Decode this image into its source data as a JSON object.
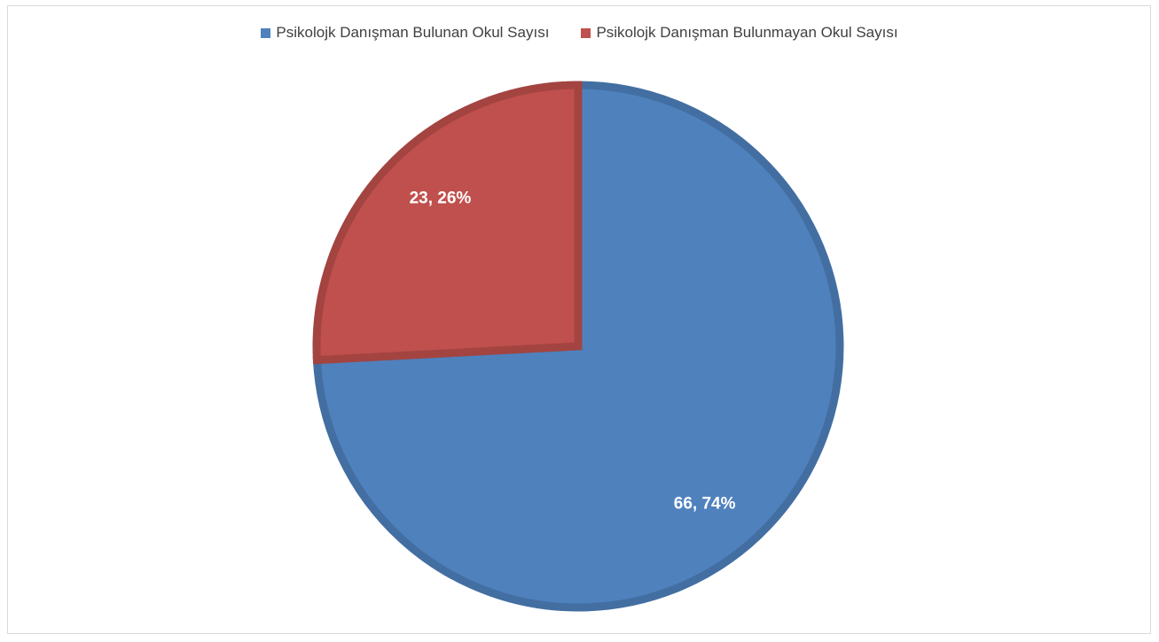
{
  "chart_data": {
    "type": "pie",
    "title": "",
    "categories": [
      "Psikolojk Danışman Bulunan Okul Sayısı",
      "Psikolojk Danışman Bulunmayan Okul Sayısı"
    ],
    "values": [
      66,
      23
    ],
    "percent_labels": [
      "74%",
      "26%"
    ],
    "data_labels": [
      "66, 74%",
      "23, 26%"
    ],
    "colors": [
      "#4f81bd",
      "#c0504d"
    ],
    "legend_position": "top",
    "start_angle": "12 o'clock, clockwise"
  }
}
